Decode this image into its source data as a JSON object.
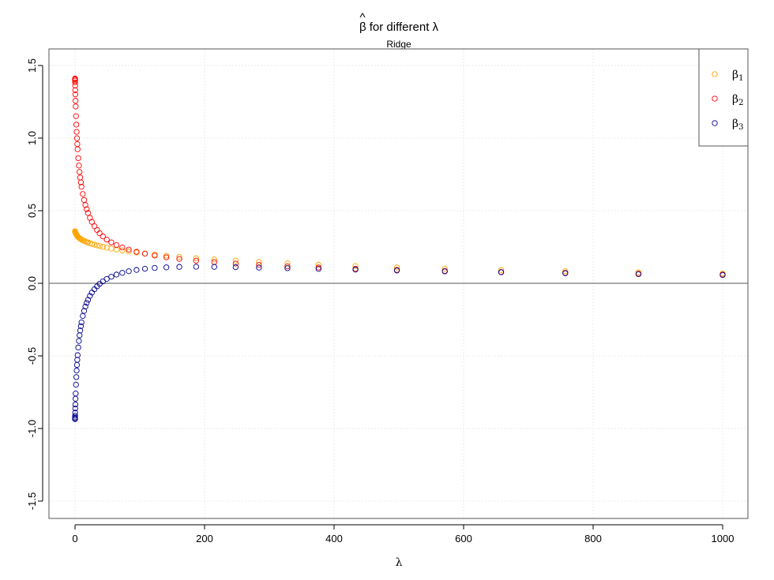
{
  "chart_data": {
    "type": "scatter",
    "title_beta": "β",
    "title_hat": "^",
    "title_rest": " for different λ",
    "subtitle": "Ridge",
    "xlabel": "λ",
    "ylabel": "",
    "xlim": [
      0,
      1000
    ],
    "ylim": [
      -1.5,
      1.5
    ],
    "x_ticks": [
      0,
      200,
      400,
      600,
      800,
      1000
    ],
    "x_tick_labels": [
      "0",
      "200",
      "400",
      "600",
      "800",
      "1000"
    ],
    "y_ticks": [
      -1.5,
      -1.0,
      -0.5,
      0.0,
      0.5,
      1.0,
      1.5
    ],
    "y_tick_labels": [
      "-1.5",
      "-1.0",
      "-0.5",
      "0.0",
      "0.5",
      "1.0",
      "1.5"
    ],
    "grid": true,
    "reference_line_y": 0,
    "legend_position": "top-right",
    "x": [
      0,
      0.01,
      0.02,
      0.05,
      0.1,
      0.2,
      0.35,
      0.5,
      0.75,
      1,
      1.5,
      2,
      2.5,
      3,
      3.5,
      4,
      5,
      6,
      7,
      8,
      9,
      10,
      12,
      14,
      16,
      18,
      20,
      23,
      26,
      30,
      34,
      38,
      43,
      49,
      56,
      64,
      73,
      83,
      95,
      108,
      123,
      141,
      161,
      187,
      215,
      248,
      284,
      328,
      376,
      433,
      497,
      571,
      658,
      757,
      870,
      1000
    ],
    "series": [
      {
        "name": "β1",
        "label_base": "β",
        "label_sub": "1",
        "color": "#ffa500",
        "values": [
          0.358,
          0.358,
          0.357,
          0.357,
          0.356,
          0.355,
          0.353,
          0.351,
          0.348,
          0.345,
          0.34,
          0.336,
          0.332,
          0.329,
          0.326,
          0.323,
          0.318,
          0.314,
          0.31,
          0.307,
          0.304,
          0.301,
          0.296,
          0.292,
          0.288,
          0.284,
          0.281,
          0.276,
          0.271,
          0.266,
          0.261,
          0.256,
          0.251,
          0.245,
          0.239,
          0.232,
          0.226,
          0.219,
          0.212,
          0.205,
          0.197,
          0.19,
          0.182,
          0.173,
          0.165,
          0.156,
          0.147,
          0.138,
          0.128,
          0.119,
          0.109,
          0.1,
          0.091,
          0.083,
          0.075,
          0.067
        ]
      },
      {
        "name": "β2",
        "label_base": "β",
        "label_sub": "2",
        "color": "#ff0000",
        "values": [
          1.41,
          1.407,
          1.404,
          1.396,
          1.384,
          1.362,
          1.33,
          1.301,
          1.257,
          1.218,
          1.151,
          1.093,
          1.043,
          0.999,
          0.959,
          0.923,
          0.862,
          0.811,
          0.767,
          0.729,
          0.695,
          0.665,
          0.615,
          0.574,
          0.539,
          0.51,
          0.484,
          0.451,
          0.423,
          0.393,
          0.367,
          0.345,
          0.323,
          0.301,
          0.282,
          0.263,
          0.247,
          0.232,
          0.217,
          0.204,
          0.191,
          0.179,
          0.168,
          0.156,
          0.146,
          0.136,
          0.127,
          0.117,
          0.109,
          0.1,
          0.092,
          0.085,
          0.078,
          0.072,
          0.066,
          0.06
        ]
      },
      {
        "name": "β3",
        "label_base": "β",
        "label_sub": "3",
        "color": "#00008b",
        "values": [
          -0.935,
          -0.933,
          -0.93,
          -0.923,
          -0.912,
          -0.891,
          -0.862,
          -0.835,
          -0.795,
          -0.759,
          -0.698,
          -0.646,
          -0.601,
          -0.562,
          -0.527,
          -0.495,
          -0.442,
          -0.397,
          -0.358,
          -0.325,
          -0.295,
          -0.269,
          -0.225,
          -0.19,
          -0.16,
          -0.135,
          -0.114,
          -0.087,
          -0.064,
          -0.041,
          -0.021,
          -0.004,
          0.013,
          0.03,
          0.045,
          0.06,
          0.072,
          0.083,
          0.092,
          0.1,
          0.106,
          0.11,
          0.113,
          0.114,
          0.113,
          0.111,
          0.108,
          0.104,
          0.099,
          0.094,
          0.088,
          0.082,
          0.076,
          0.069,
          0.063,
          0.057
        ]
      }
    ]
  }
}
